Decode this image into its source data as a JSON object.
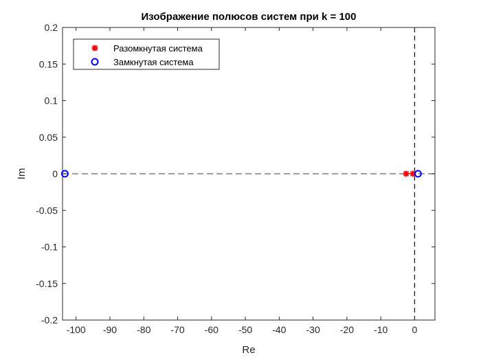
{
  "chart_data": {
    "type": "scatter",
    "title": "Изображение полюсов систем при k = 100",
    "xlabel": "Re",
    "ylabel": "Im",
    "xlim": [
      -104,
      6
    ],
    "ylim": [
      -0.2,
      0.2
    ],
    "xticks": [
      -100,
      -90,
      -80,
      -70,
      -60,
      -50,
      -40,
      -30,
      -20,
      -10,
      0
    ],
    "xtick_labels": [
      "-100",
      "-90",
      "-80",
      "-70",
      "-60",
      "-50",
      "-40",
      "-30",
      "-20",
      "-10",
      "0"
    ],
    "yticks": [
      0.2,
      0.15,
      0.1,
      0.05,
      0,
      -0.05,
      -0.1,
      -0.15,
      -0.2
    ],
    "ytick_labels": [
      "0.2",
      "0.15",
      "0.1",
      "0.05",
      "0",
      "-0.05",
      "-0.1",
      "-0.15",
      "-0.2"
    ],
    "grid": false,
    "reference_lines": [
      {
        "orientation": "horizontal",
        "value": 0,
        "style": "dashed",
        "color": "#7f7f7f"
      },
      {
        "orientation": "vertical",
        "value": 0,
        "style": "dashed",
        "color": "#000000"
      }
    ],
    "legend": {
      "placement": "top-left"
    },
    "series": [
      {
        "name": "Разомкнутая система",
        "marker": "asterisk",
        "color": "#ff0000",
        "points": [
          {
            "x": -2.5,
            "y": 0
          },
          {
            "x": -0.5,
            "y": 0
          }
        ]
      },
      {
        "name": "Замкнутая система",
        "marker": "circle",
        "color": "#0000ff",
        "points": [
          {
            "x": -103.3,
            "y": 0
          },
          {
            "x": 1.0,
            "y": 0
          }
        ]
      }
    ]
  }
}
